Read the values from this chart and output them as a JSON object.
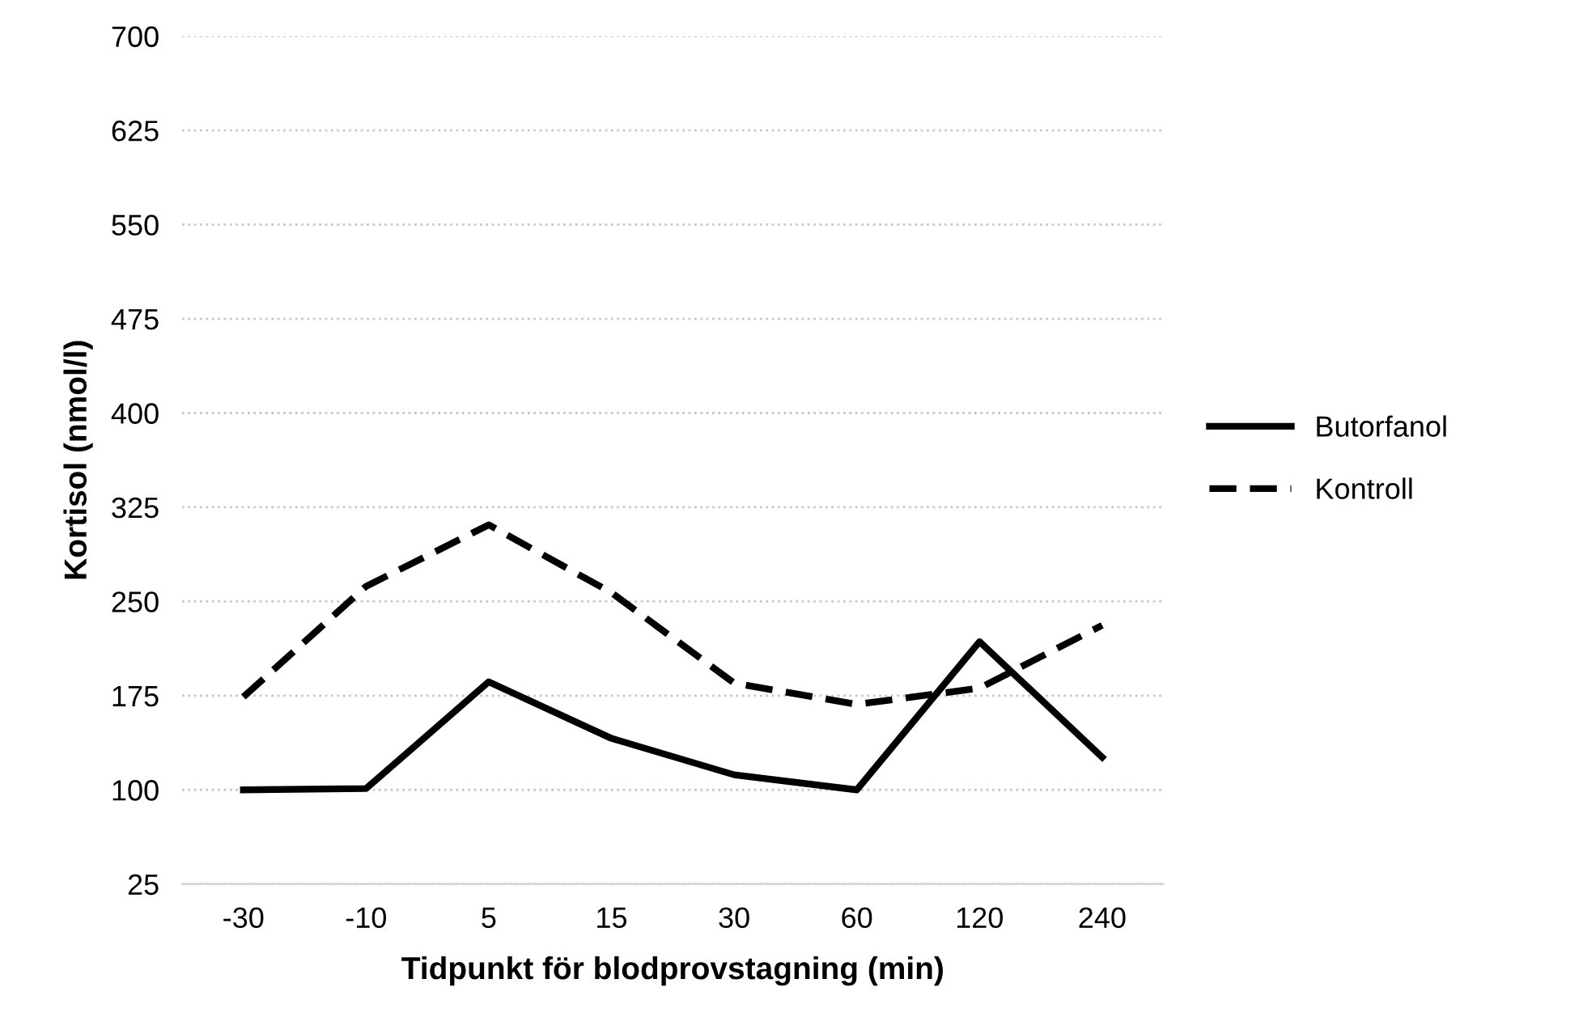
{
  "chart_data": {
    "type": "line",
    "xlabel": "Tidpunkt för blodprovstagning (min)",
    "ylabel": "Kortisol (nmol/l)",
    "categories": [
      "-30",
      "-10",
      "5",
      "15",
      "30",
      "60",
      "120",
      "240"
    ],
    "series": [
      {
        "name": "Butorfanol",
        "color": "#000000",
        "line_style": "solid",
        "values": [
          100,
          101,
          186,
          141,
          112,
          100,
          218,
          126
        ]
      },
      {
        "name": "Kontroll",
        "color": "#000000",
        "line_style": "dashed",
        "values": [
          174,
          262,
          311,
          257,
          185,
          168,
          181,
          231
        ]
      }
    ],
    "ylim": [
      25,
      700
    ],
    "yticks": [
      25,
      100,
      175,
      250,
      325,
      400,
      475,
      550,
      625,
      700
    ],
    "grid": "y",
    "legend": "right",
    "marker": "none"
  }
}
